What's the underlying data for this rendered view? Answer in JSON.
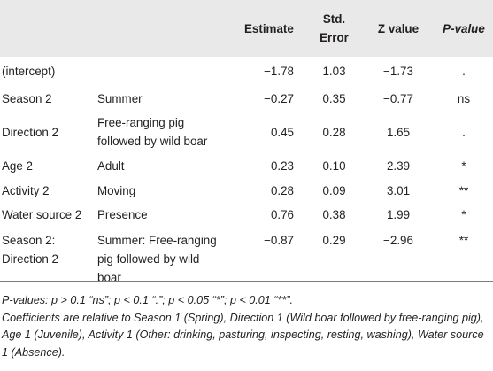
{
  "table": {
    "headers": {
      "estimate": "Estimate",
      "std_error_line1": "Std.",
      "std_error_line2": "Error",
      "z_value": "Z value",
      "p_value": "P-value"
    },
    "rows": [
      {
        "variable": "(intercept)",
        "level": "",
        "estimate": "−1.78",
        "std_error": "1.03",
        "z_value": "−1.73",
        "p_value": "."
      },
      {
        "variable": "Season 2",
        "level": "Summer",
        "estimate": "−0.27",
        "std_error": "0.35",
        "z_value": "−0.77",
        "p_value": "ns"
      },
      {
        "variable": "Direction 2",
        "level_line1": "Free-ranging pig",
        "level_line2": "followed by wild boar",
        "estimate": "0.45",
        "std_error": "0.28",
        "z_value": "1.65",
        "p_value": "."
      },
      {
        "variable": "Age 2",
        "level": "Adult",
        "estimate": "0.23",
        "std_error": "0.10",
        "z_value": "2.39",
        "p_value": "*"
      },
      {
        "variable": "Activity 2",
        "level": "Moving",
        "estimate": "0.28",
        "std_error": "0.09",
        "z_value": "3.01",
        "p_value": "**"
      },
      {
        "variable": "Water source 2",
        "level": "Presence",
        "estimate": "0.76",
        "std_error": "0.38",
        "z_value": "1.99",
        "p_value": "*"
      },
      {
        "variable_line1": "Season 2:",
        "variable_line2": "Direction 2",
        "level_line1": "Summer: Free-ranging",
        "level_line2": "pig followed by wild",
        "level_line3": "boar",
        "estimate": "−0.87",
        "std_error": "0.29",
        "z_value": "−2.96",
        "p_value": "**"
      }
    ]
  },
  "footnotes": {
    "p_values": "P-values: p > 0.1 “ns”; p < 0.1 “.”; p < 0.05 “*”; p < 0.01 “**”.",
    "coefficients": "Coefficients are relative to Season 1 (Spring), Direction 1 (Wild boar followed by free-ranging pig), Age 1 (Juvenile), Activity 1 (Other: drinking, pasturing, inspecting, resting, washing), Water source 1 (Absence)."
  }
}
